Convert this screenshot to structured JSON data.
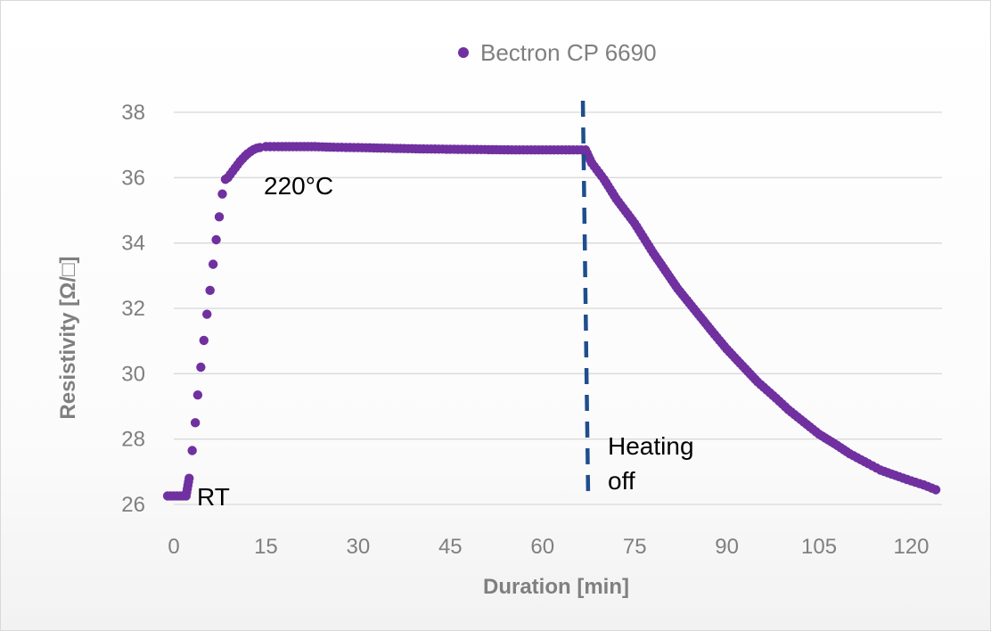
{
  "chart_data": {
    "type": "scatter",
    "xlabel": "Duration [min]",
    "ylabel": "Resistivity [Ω/□]",
    "xlim": [
      0,
      125
    ],
    "ylim": [
      26,
      38
    ],
    "xticks": [
      "0",
      "15",
      "30",
      "45",
      "60",
      "75",
      "90",
      "105",
      "120"
    ],
    "yticks": [
      "26",
      "28",
      "30",
      "32",
      "34",
      "36",
      "38"
    ],
    "grid": "horizontal",
    "legend_position": "top",
    "series": [
      {
        "name": "Bectron CP 6690",
        "color": "#7030a0",
        "points": [
          [
            -1,
            26.26
          ],
          [
            -0.5,
            26.26
          ],
          [
            0,
            26.26
          ],
          [
            0.5,
            26.26
          ],
          [
            1,
            26.26
          ],
          [
            1.5,
            26.26
          ],
          [
            2,
            26.26
          ],
          [
            2.5,
            26.8
          ],
          [
            3.0,
            27.65
          ],
          [
            3.5,
            28.5
          ],
          [
            3.9,
            29.35
          ],
          [
            4.4,
            30.2
          ],
          [
            4.9,
            31.02
          ],
          [
            5.4,
            31.82
          ],
          [
            5.9,
            32.55
          ],
          [
            6.4,
            33.35
          ],
          [
            6.9,
            34.1
          ],
          [
            7.4,
            34.8
          ],
          [
            7.9,
            35.5
          ],
          [
            8.4,
            35.95
          ],
          [
            8.8,
            36.0
          ],
          [
            9.2,
            36.1
          ],
          [
            9.6,
            36.2
          ],
          [
            10.0,
            36.3
          ],
          [
            10.4,
            36.4
          ],
          [
            10.8,
            36.5
          ],
          [
            11.2,
            36.58
          ],
          [
            11.6,
            36.66
          ],
          [
            12.0,
            36.73
          ],
          [
            12.5,
            36.8
          ],
          [
            13.0,
            36.86
          ],
          [
            13.5,
            36.9
          ],
          [
            14,
            36.92
          ],
          [
            15,
            36.95
          ],
          [
            17,
            36.95
          ],
          [
            20,
            36.95
          ],
          [
            23,
            36.95
          ],
          [
            26,
            36.93
          ],
          [
            30,
            36.92
          ],
          [
            35,
            36.9
          ],
          [
            40,
            36.88
          ],
          [
            45,
            36.87
          ],
          [
            50,
            36.86
          ],
          [
            55,
            36.85
          ],
          [
            60,
            36.85
          ],
          [
            65,
            36.85
          ],
          [
            67,
            36.85
          ],
          [
            68,
            36.45
          ],
          [
            70,
            35.95
          ],
          [
            72,
            35.35
          ],
          [
            75,
            34.6
          ],
          [
            78,
            33.7
          ],
          [
            80,
            33.15
          ],
          [
            82,
            32.6
          ],
          [
            85,
            31.9
          ],
          [
            88,
            31.2
          ],
          [
            90,
            30.75
          ],
          [
            93,
            30.15
          ],
          [
            95,
            29.75
          ],
          [
            98,
            29.25
          ],
          [
            100,
            28.9
          ],
          [
            103,
            28.45
          ],
          [
            105,
            28.15
          ],
          [
            108,
            27.8
          ],
          [
            110,
            27.55
          ],
          [
            113,
            27.25
          ],
          [
            115,
            27.05
          ],
          [
            118,
            26.85
          ],
          [
            120,
            26.72
          ],
          [
            122,
            26.6
          ],
          [
            124,
            26.45
          ]
        ]
      }
    ],
    "vline": {
      "x": 67,
      "color": "#1f4e8c",
      "style": "dashed"
    },
    "annotations": [
      "220°C",
      "RT",
      "Heating",
      "off"
    ]
  }
}
